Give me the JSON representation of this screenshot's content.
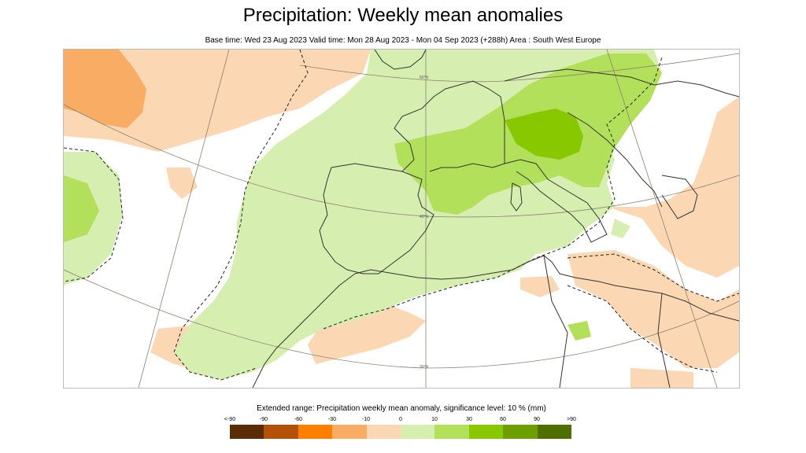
{
  "title": "Precipitation: Weekly mean anomalies",
  "subtitle": "Base time: Wed 23 Aug 2023 Valid time: Mon 28 Aug 2023 - Mon 04 Sep 2023 (+288h) Area : South West Europe",
  "map": {
    "lat_labels": [
      "50°N",
      "40°N",
      "30°N"
    ],
    "colors": {
      "wet_light": "#d6efb0",
      "wet_mid": "#b2e05a",
      "wet_strong": "#88c800",
      "dry_light": "#fbd7b3",
      "dry_mid": "#f9ad64"
    }
  },
  "legend": {
    "title": "Extended range: Precipitation weekly mean anomaly, significance level: 10 % (mm)",
    "labels": [
      "<-90",
      "-90",
      "-60",
      "-30",
      "-10",
      "0",
      "10",
      "30",
      "60",
      "90",
      ">90"
    ],
    "colors": [
      "#5a2c06",
      "#b35207",
      "#ff7f00",
      "#f9ad64",
      "#fbd7b3",
      "#d6efb0",
      "#b2e05a",
      "#88c800",
      "#6d9f00",
      "#4f7000"
    ]
  }
}
